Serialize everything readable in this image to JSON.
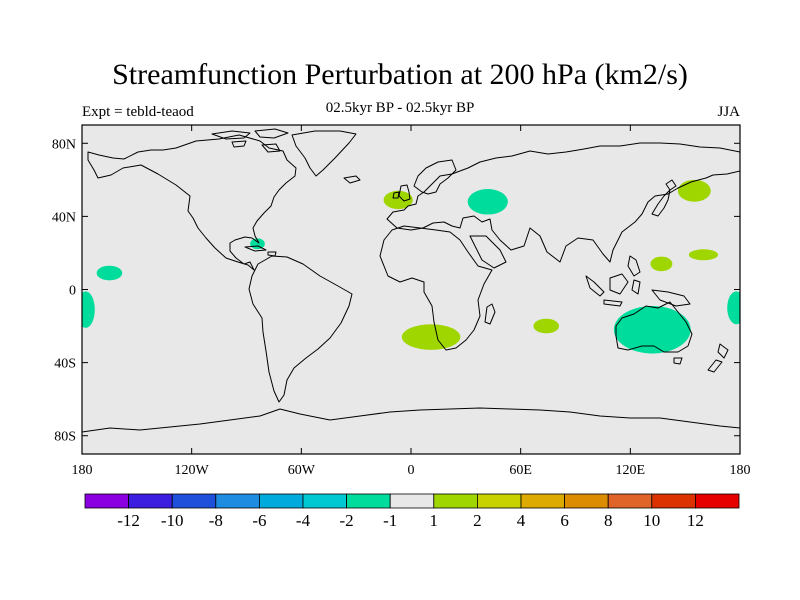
{
  "title": "Streamfunction Perturbation at 200 hPa (km2/s)",
  "subtitle": "02.5kyr BP - 02.5kyr BP",
  "left_label": "Expt = tebld-teaod",
  "right_label": "JJA",
  "map": {
    "projection": "cylindrical-equidistant",
    "lon_range": [
      -180,
      180
    ],
    "lat_range": [
      -90,
      90
    ],
    "ocean_color": "#e8e8e8",
    "coast_color": "#000000",
    "lat_ticks": [
      {
        "value": 80,
        "label": "80N"
      },
      {
        "value": 40,
        "label": "40N"
      },
      {
        "value": 0,
        "label": "0"
      },
      {
        "value": -40,
        "label": "40S"
      },
      {
        "value": -80,
        "label": "80S"
      }
    ],
    "lon_ticks": [
      {
        "value": -180,
        "label": "180"
      },
      {
        "value": -120,
        "label": "120W"
      },
      {
        "value": -60,
        "label": "60W"
      },
      {
        "value": 0,
        "label": "0"
      },
      {
        "value": 60,
        "label": "60E"
      },
      {
        "value": 120,
        "label": "120E"
      },
      {
        "value": 180,
        "label": "180"
      }
    ],
    "anomalies": [
      {
        "name": "north-atlantic-positive",
        "lon": -7,
        "lat": 49,
        "rlon": 8,
        "rlat": 5,
        "sign": "positive",
        "color": "#a0d600"
      },
      {
        "name": "europe-negative",
        "lon": 42,
        "lat": 48,
        "rlon": 11,
        "rlat": 7,
        "sign": "negative",
        "color": "#00dc9b"
      },
      {
        "name": "gulf-negative",
        "lon": -84,
        "lat": 25,
        "rlon": 4,
        "rlat": 3,
        "sign": "negative",
        "color": "#00dc9b"
      },
      {
        "name": "northwest-pacific-positive",
        "lon": 155,
        "lat": 54,
        "rlon": 9,
        "rlat": 6,
        "sign": "positive",
        "color": "#a0d600"
      },
      {
        "name": "west-pacific-positive",
        "lon": 160,
        "lat": 19,
        "rlon": 8,
        "rlat": 3,
        "sign": "positive",
        "color": "#a0d600"
      },
      {
        "name": "philippine-sea-positive",
        "lon": 137,
        "lat": 14,
        "rlon": 6,
        "rlat": 4,
        "sign": "positive",
        "color": "#a0d600"
      },
      {
        "name": "east-pacific-negative",
        "lon": -165,
        "lat": 9,
        "rlon": 7,
        "rlat": 4,
        "sign": "negative",
        "color": "#00dc9b"
      },
      {
        "name": "southeast-pacific-negative",
        "lon": -178,
        "lat": -11,
        "rlon": 5,
        "rlat": 10,
        "sign": "negative",
        "color": "#00dc9b"
      },
      {
        "name": "southwest-pacific-negative",
        "lon": 178,
        "lat": -10,
        "rlon": 5,
        "rlat": 9,
        "sign": "negative",
        "color": "#00dc9b"
      },
      {
        "name": "south-atlantic-positive",
        "lon": 11,
        "lat": -26,
        "rlon": 16,
        "rlat": 7,
        "sign": "positive",
        "color": "#a0d600"
      },
      {
        "name": "indian-ocean-positive",
        "lon": 74,
        "lat": -20,
        "rlon": 7,
        "rlat": 4,
        "sign": "positive",
        "color": "#a0d600"
      },
      {
        "name": "australia-negative",
        "lon": 132,
        "lat": -22,
        "rlon": 21,
        "rlat": 13,
        "sign": "negative",
        "color": "#00dc9b"
      }
    ]
  },
  "colorbar": {
    "colors": [
      "#8a00e0",
      "#3c1ee0",
      "#1e50dc",
      "#1e8ce0",
      "#00aadc",
      "#00c8d2",
      "#00dc9b",
      "#e8e8e8",
      "#a0d600",
      "#c8d200",
      "#dcaa00",
      "#dc8c00",
      "#e06428",
      "#dc3200",
      "#e60000"
    ],
    "labels": [
      "-12",
      "-10",
      "-8",
      "-6",
      "-4",
      "-2",
      "-1",
      "1",
      "2",
      "4",
      "6",
      "8",
      "10",
      "12"
    ]
  }
}
